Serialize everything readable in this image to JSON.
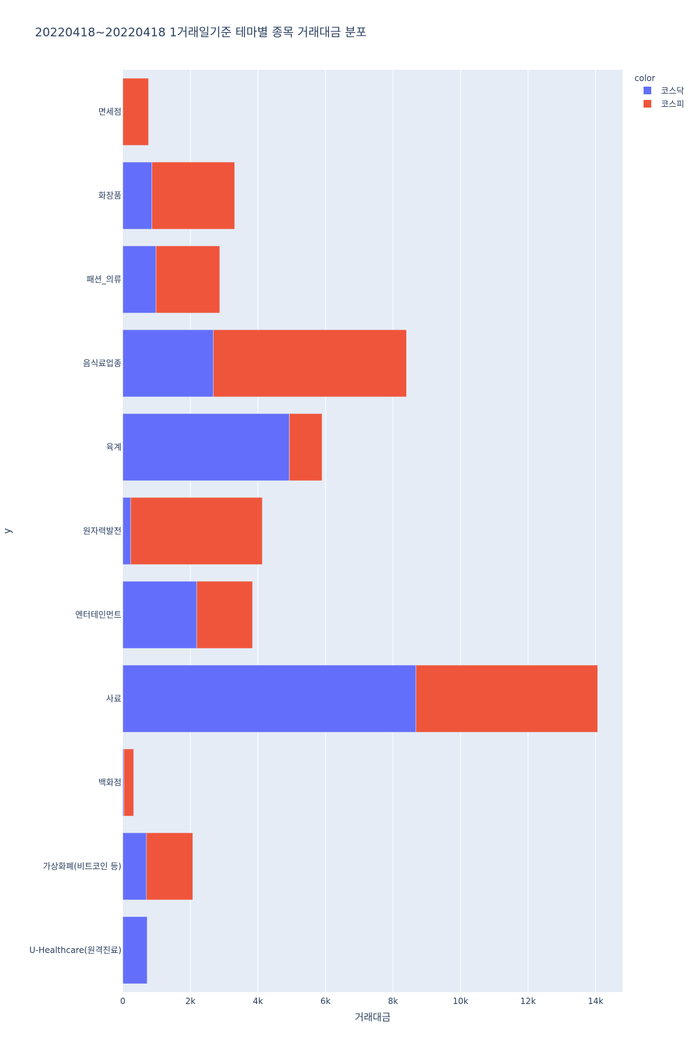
{
  "chart_data": {
    "type": "bar",
    "orientation": "horizontal",
    "barmode": "stack",
    "title": "20220418~20220418 1거래일기준 테마별 종목 거래대금 분포",
    "xlabel": "거래대금",
    "ylabel": "y",
    "xlim": [
      0,
      14800
    ],
    "x_ticks": [
      0,
      2000,
      4000,
      6000,
      8000,
      10000,
      12000,
      14000
    ],
    "x_tick_labels": [
      "0",
      "2k",
      "4k",
      "6k",
      "8k",
      "10k",
      "12k",
      "14k"
    ],
    "grid": true,
    "legend_title": "color",
    "legend_position": "top-right",
    "categories": [
      "면세점",
      "화장품",
      "패션_의류",
      "음식료업종",
      "육계",
      "원자력발전",
      "엔터테인먼트",
      "사료",
      "백화점",
      "가상화폐(비트코인 등)",
      "U-Healthcare(원격진료)"
    ],
    "series": [
      {
        "name": "코스닥",
        "color": "#636efa",
        "values": [
          0,
          860,
          980,
          2680,
          4930,
          230,
          2190,
          8680,
          30,
          700,
          720
        ]
      },
      {
        "name": "코스피",
        "color": "#ef553b",
        "values": [
          760,
          2450,
          1890,
          5720,
          970,
          3900,
          1650,
          5380,
          290,
          1370,
          0
        ]
      }
    ]
  }
}
